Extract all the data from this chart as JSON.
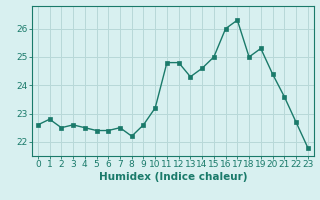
{
  "x": [
    0,
    1,
    2,
    3,
    4,
    5,
    6,
    7,
    8,
    9,
    10,
    11,
    12,
    13,
    14,
    15,
    16,
    17,
    18,
    19,
    20,
    21,
    22,
    23
  ],
  "y": [
    22.6,
    22.8,
    22.5,
    22.6,
    22.5,
    22.4,
    22.4,
    22.5,
    22.2,
    22.6,
    23.2,
    24.8,
    24.8,
    24.3,
    24.6,
    25.0,
    26.0,
    26.3,
    25.0,
    25.3,
    24.4,
    23.6,
    22.7,
    21.8
  ],
  "line_color": "#1a7a6a",
  "bg_color": "#d8f0f0",
  "grid_color": "#b8d8d8",
  "xlabel": "Humidex (Indice chaleur)",
  "yticks": [
    22,
    23,
    24,
    25,
    26
  ],
  "xticks": [
    0,
    1,
    2,
    3,
    4,
    5,
    6,
    7,
    8,
    9,
    10,
    11,
    12,
    13,
    14,
    15,
    16,
    17,
    18,
    19,
    20,
    21,
    22,
    23
  ],
  "xlim": [
    -0.5,
    23.5
  ],
  "ylim": [
    21.5,
    26.8
  ],
  "xlabel_fontsize": 7.5,
  "tick_fontsize": 6.5,
  "marker_size": 2.5,
  "line_width": 1.0
}
